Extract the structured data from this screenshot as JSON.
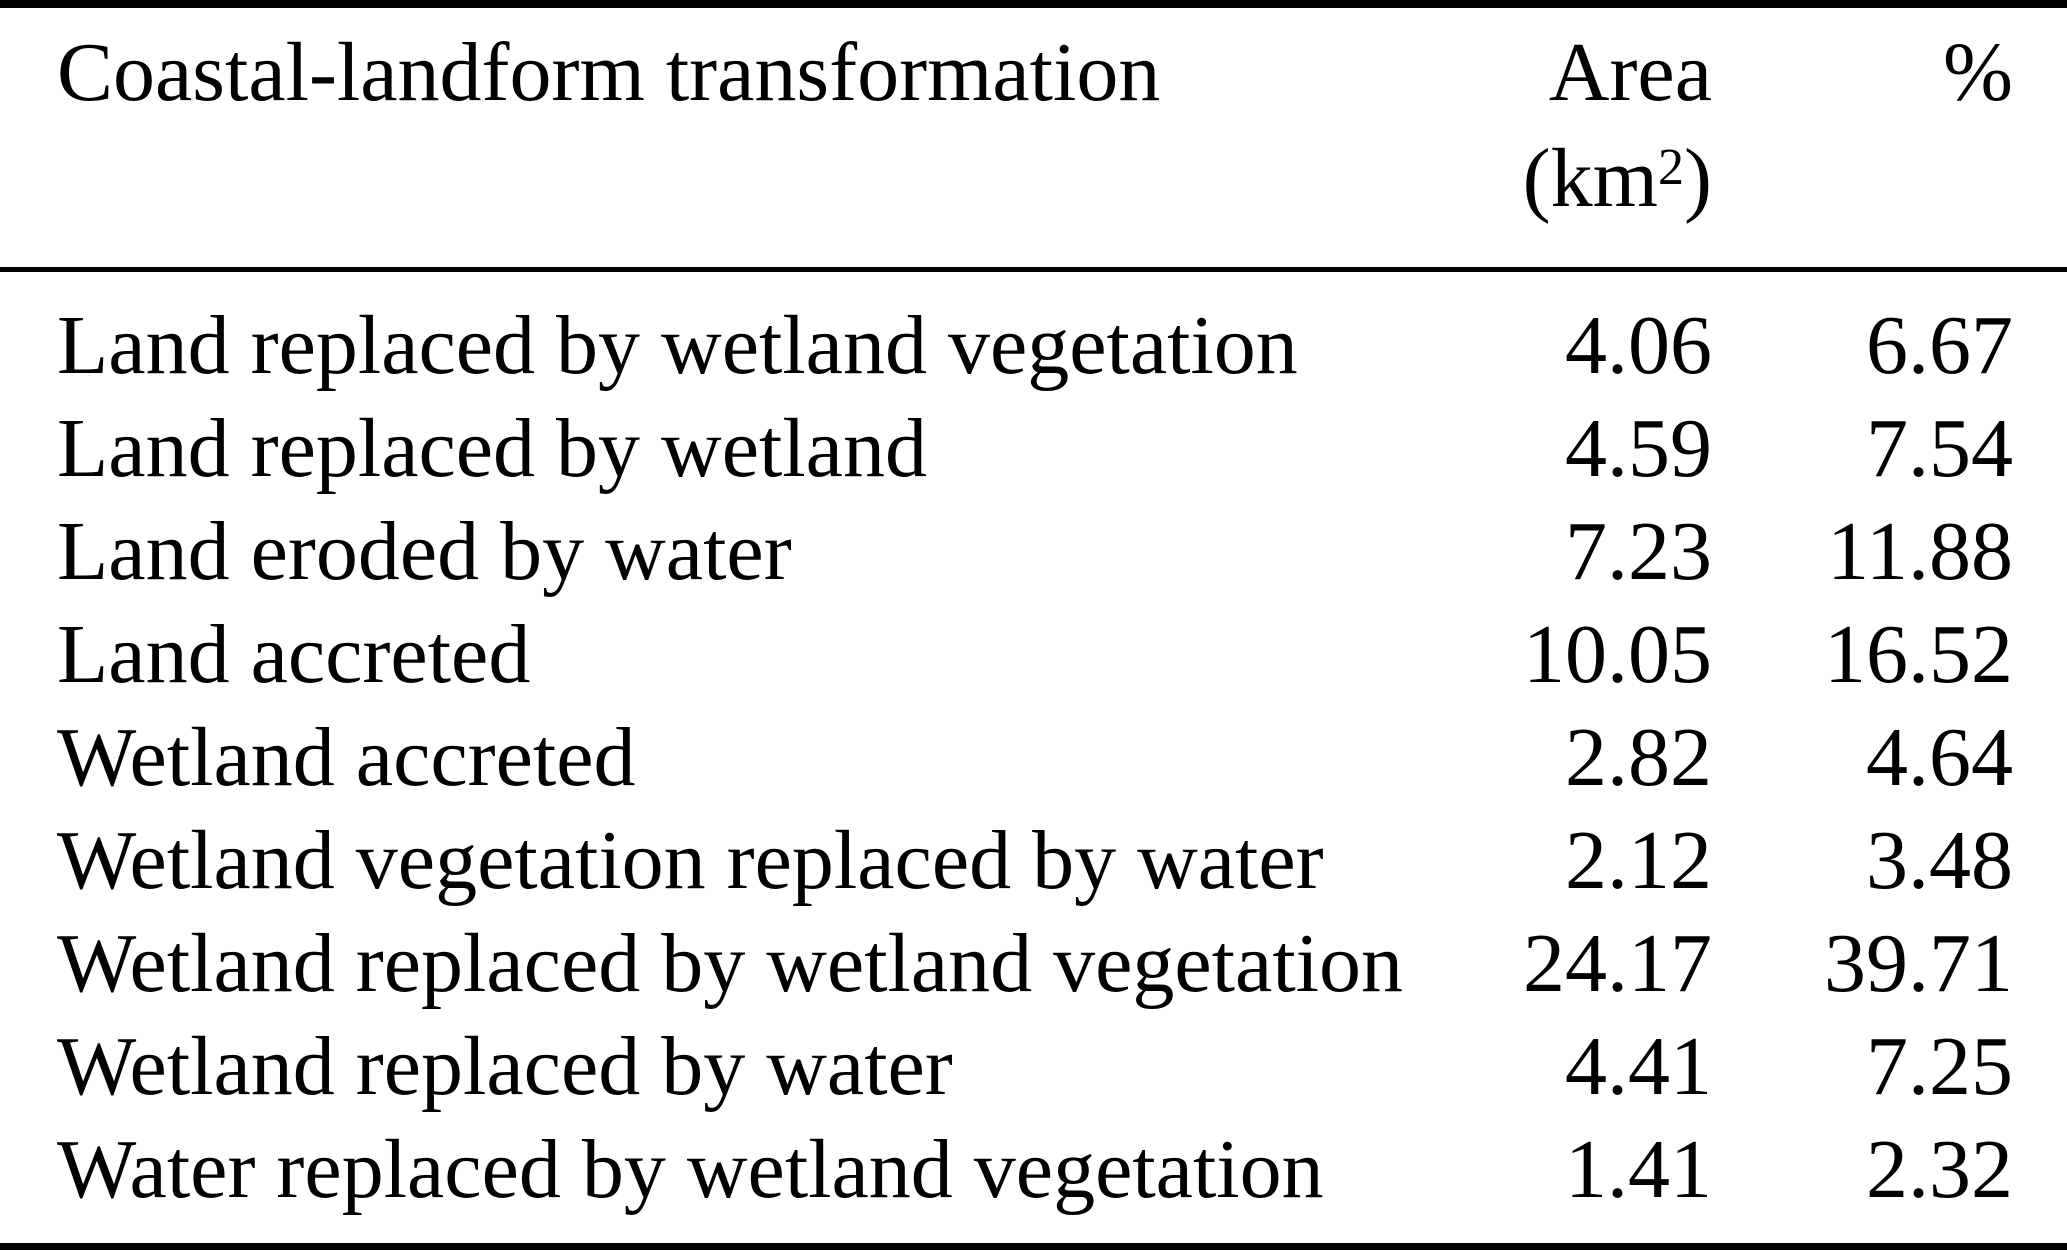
{
  "table": {
    "header": {
      "transformation": "Coastal-landform transformation",
      "area_line1": "Area",
      "area_unit_open": "(km",
      "area_unit_exp": "2",
      "area_unit_close": ")",
      "percent": "%"
    },
    "rows": [
      {
        "label": "Land replaced by wetland vegetation",
        "area": "4.06",
        "pct": "6.67"
      },
      {
        "label": "Land replaced by wetland",
        "area": "4.59",
        "pct": "7.54"
      },
      {
        "label": "Land eroded by water",
        "area": "7.23",
        "pct": "11.88"
      },
      {
        "label": "Land accreted",
        "area": "10.05",
        "pct": "16.52"
      },
      {
        "label": "Wetland accreted",
        "area": "2.82",
        "pct": "4.64"
      },
      {
        "label": "Wetland vegetation replaced by water",
        "area": "2.12",
        "pct": "3.48"
      },
      {
        "label": "Wetland replaced by wetland vegetation",
        "area": "24.17",
        "pct": "39.71"
      },
      {
        "label": "Wetland replaced by water",
        "area": "4.41",
        "pct": "7.25"
      },
      {
        "label": "Water replaced by wetland vegetation",
        "area": "1.41",
        "pct": "2.32"
      }
    ],
    "colors": {
      "text": "#000000",
      "background": "#ffffff",
      "rule": "#000000"
    }
  }
}
